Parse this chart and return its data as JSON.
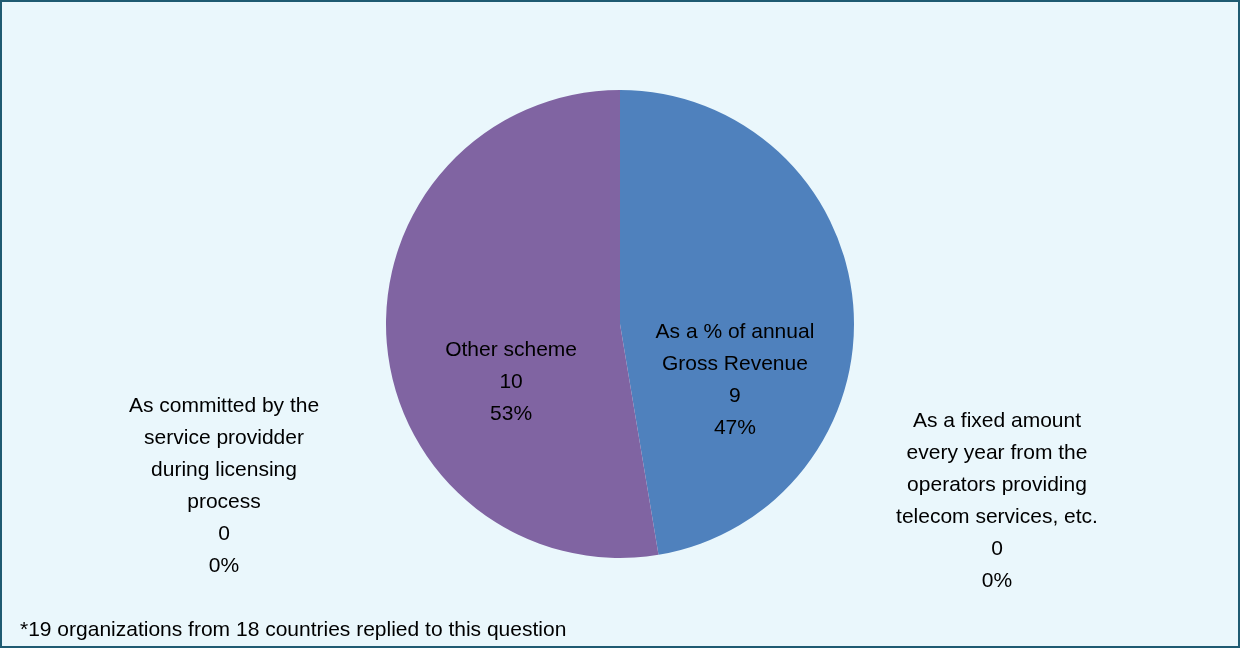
{
  "chart_data": {
    "type": "pie",
    "categories": [
      "As a % of annual Gross Revenue",
      "As a fixed amount every year from the operators providing telecom services, etc.",
      "As committed by the service providder during licensing process",
      "Other scheme"
    ],
    "values": [
      9,
      0,
      0,
      10
    ],
    "colors": [
      "#4f81bd",
      "#c0504d",
      "#9bbb59",
      "#8064a2"
    ],
    "value_labels": [
      "9\n47%",
      "0\n0%",
      "0\n0%",
      "10\n53%"
    ],
    "legend": false,
    "annotations": [
      "*19 organizations from 18 countries replied to this question"
    ]
  }
}
